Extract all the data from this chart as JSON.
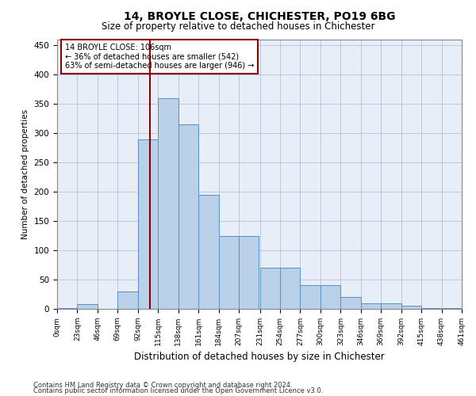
{
  "title1": "14, BROYLE CLOSE, CHICHESTER, PO19 6BG",
  "title2": "Size of property relative to detached houses in Chichester",
  "xlabel": "Distribution of detached houses by size in Chichester",
  "ylabel": "Number of detached properties",
  "footnote1": "Contains HM Land Registry data © Crown copyright and database right 2024.",
  "footnote2": "Contains public sector information licensed under the Open Government Licence v3.0.",
  "annotation_line1": "14 BROYLE CLOSE: 106sqm",
  "annotation_line2": "← 36% of detached houses are smaller (542)",
  "annotation_line3": "63% of semi-detached houses are larger (946) →",
  "bin_edges": [
    0,
    23,
    46,
    69,
    92,
    115,
    138,
    161,
    184,
    207,
    231,
    254,
    277,
    300,
    323,
    346,
    369,
    392,
    415,
    438,
    461
  ],
  "heights": [
    2,
    8,
    0,
    30,
    290,
    360,
    315,
    195,
    125,
    125,
    70,
    70,
    40,
    40,
    20,
    10,
    10,
    5,
    2,
    2
  ],
  "property_size": 106,
  "vline_color": "#8B0000",
  "bar_facecolor": "#b8d0e8",
  "bar_edgecolor": "#5b8fc0",
  "plot_bg_color": "#e8eef8",
  "annotation_box_edge": "#8B0000",
  "ylim": [
    0,
    460
  ],
  "yticks": [
    0,
    50,
    100,
    150,
    200,
    250,
    300,
    350,
    400,
    450
  ],
  "tick_labels": [
    "0sqm",
    "23sqm",
    "46sqm",
    "69sqm",
    "92sqm",
    "115sqm",
    "138sqm",
    "161sqm",
    "184sqm",
    "207sqm",
    "231sqm",
    "254sqm",
    "277sqm",
    "300sqm",
    "323sqm",
    "346sqm",
    "369sqm",
    "392sqm",
    "415sqm",
    "438sqm",
    "461sqm"
  ]
}
